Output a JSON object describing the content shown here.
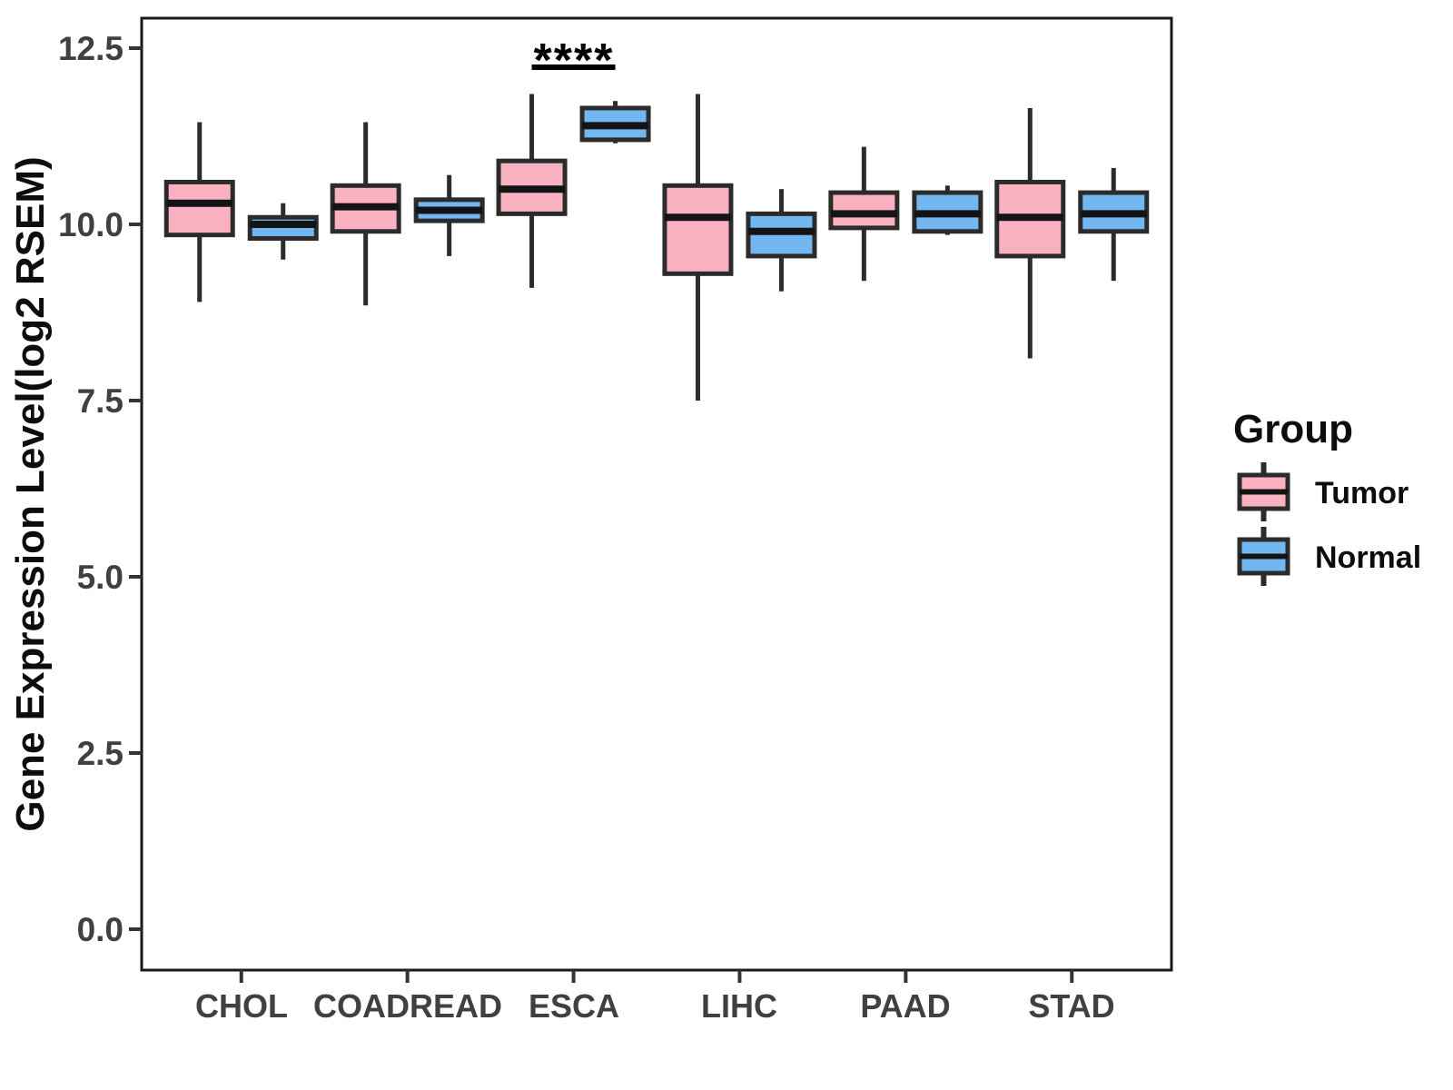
{
  "figure": {
    "background": "#FFFFFF"
  },
  "styles": {
    "box_stroke": "#2B2B2B",
    "median_color": "#141414",
    "whisker_color": "#2B2B2B",
    "panel_border_color": "#1A1A1A",
    "tick_mark_color": "#333333"
  },
  "chart_data": {
    "type": "boxplot",
    "title": "",
    "xlabel": "",
    "ylabel": "Gene Expression Level(log2 RSEM)",
    "grid": false,
    "categories": [
      "CHOL",
      "COADREAD",
      "ESCA",
      "LIHC",
      "PAAD",
      "STAD"
    ],
    "y_ticks": [
      0.0,
      2.5,
      5.0,
      7.5,
      10.0,
      12.5
    ],
    "y_tick_labels": [
      "0.0",
      "2.5",
      "5.0",
      "7.5",
      "10.0",
      "12.5"
    ],
    "ylim": [
      -0.6,
      12.9
    ],
    "legend": {
      "title": "Group",
      "position": "right",
      "entries": [
        {
          "label": "Tumor",
          "fill": "#FAB2C1"
        },
        {
          "label": "Normal",
          "fill": "#73B7F1"
        }
      ]
    },
    "series": [
      {
        "name": "Tumor",
        "fill": "#FAB2C1",
        "boxes": [
          {
            "category": "CHOL",
            "min": 8.9,
            "q1": 9.85,
            "median": 10.3,
            "q3": 10.6,
            "max": 11.45
          },
          {
            "category": "COADREAD",
            "min": 8.85,
            "q1": 9.9,
            "median": 10.25,
            "q3": 10.55,
            "max": 11.45
          },
          {
            "category": "ESCA",
            "min": 9.1,
            "q1": 10.15,
            "median": 10.5,
            "q3": 10.9,
            "max": 11.85
          },
          {
            "category": "LIHC",
            "min": 7.5,
            "q1": 9.3,
            "median": 10.1,
            "q3": 10.55,
            "max": 11.85
          },
          {
            "category": "PAAD",
            "min": 9.2,
            "q1": 9.95,
            "median": 10.15,
            "q3": 10.45,
            "max": 11.1
          },
          {
            "category": "STAD",
            "min": 8.1,
            "q1": 9.55,
            "median": 10.1,
            "q3": 10.6,
            "max": 11.65
          }
        ]
      },
      {
        "name": "Normal",
        "fill": "#73B7F1",
        "boxes": [
          {
            "category": "CHOL",
            "min": 9.5,
            "q1": 9.8,
            "median": 10.0,
            "q3": 10.1,
            "max": 10.3
          },
          {
            "category": "COADREAD",
            "min": 9.55,
            "q1": 10.05,
            "median": 10.2,
            "q3": 10.35,
            "max": 10.7
          },
          {
            "category": "ESCA",
            "min": 11.15,
            "q1": 11.2,
            "median": 11.4,
            "q3": 11.65,
            "max": 11.75
          },
          {
            "category": "LIHC",
            "min": 9.05,
            "q1": 9.55,
            "median": 9.9,
            "q3": 10.15,
            "max": 10.5
          },
          {
            "category": "PAAD",
            "min": 9.85,
            "q1": 9.9,
            "median": 10.15,
            "q3": 10.45,
            "max": 10.55
          },
          {
            "category": "STAD",
            "min": 9.2,
            "q1": 9.9,
            "median": 10.15,
            "q3": 10.45,
            "max": 10.8
          }
        ]
      }
    ],
    "annotations": [
      {
        "type": "significance",
        "label": "****",
        "category": "ESCA",
        "between": [
          "Tumor",
          "Normal"
        ],
        "bar_y": 12.23
      }
    ]
  }
}
